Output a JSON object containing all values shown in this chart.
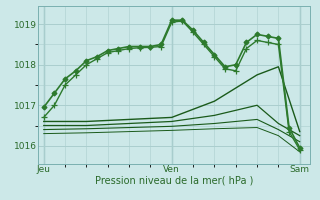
{
  "background_color": "#cce8e8",
  "grid_color": "#aacece",
  "xlabel": "Pression niveau de la mer( hPa )",
  "yticks": [
    1016,
    1017,
    1018,
    1019
  ],
  "xtick_labels": [
    "Jeu",
    "Ven",
    "Sam"
  ],
  "xtick_positions": [
    0,
    12,
    24
  ],
  "xlim": [
    -0.5,
    25
  ],
  "ylim": [
    1015.55,
    1019.45
  ],
  "series": [
    {
      "x": [
        0,
        1,
        2,
        3,
        4,
        5,
        6,
        7,
        8,
        9,
        10,
        11,
        12,
        13,
        14,
        15,
        16,
        17,
        18,
        19,
        20,
        21,
        22,
        23,
        24
      ],
      "y": [
        1016.95,
        1017.3,
        1017.65,
        1017.85,
        1018.1,
        1018.2,
        1018.35,
        1018.4,
        1018.45,
        1018.45,
        1018.45,
        1018.5,
        1019.1,
        1019.1,
        1018.85,
        1018.55,
        1018.25,
        1017.95,
        1018.0,
        1018.55,
        1018.75,
        1018.7,
        1018.65,
        1016.45,
        1015.95
      ],
      "marker": "D",
      "color": "#2d7a2d",
      "lw": 1.2,
      "ms": 2.5
    },
    {
      "x": [
        0,
        1,
        2,
        3,
        4,
        5,
        6,
        7,
        8,
        9,
        10,
        11,
        12,
        13,
        14,
        15,
        16,
        17,
        18,
        19,
        20,
        21,
        22,
        23,
        24
      ],
      "y": [
        1016.7,
        1017.0,
        1017.5,
        1017.75,
        1018.0,
        1018.15,
        1018.3,
        1018.35,
        1018.4,
        1018.42,
        1018.43,
        1018.45,
        1019.05,
        1019.08,
        1018.8,
        1018.5,
        1018.2,
        1017.9,
        1017.85,
        1018.4,
        1018.6,
        1018.55,
        1018.5,
        1016.35,
        1015.9
      ],
      "marker": "+",
      "color": "#2d7a2d",
      "lw": 1.0,
      "ms": 4.0
    },
    {
      "x": [
        0,
        4,
        8,
        12,
        16,
        20,
        22,
        24
      ],
      "y": [
        1016.6,
        1016.6,
        1016.65,
        1016.7,
        1017.1,
        1017.75,
        1017.95,
        1016.35
      ],
      "marker": null,
      "color": "#1a5a1a",
      "lw": 1.0
    },
    {
      "x": [
        0,
        4,
        8,
        12,
        16,
        20,
        22,
        24
      ],
      "y": [
        1016.5,
        1016.5,
        1016.55,
        1016.6,
        1016.75,
        1017.0,
        1016.55,
        1016.25
      ],
      "marker": null,
      "color": "#1a5a1a",
      "lw": 0.9
    },
    {
      "x": [
        0,
        4,
        8,
        12,
        16,
        20,
        22,
        24
      ],
      "y": [
        1016.4,
        1016.42,
        1016.45,
        1016.48,
        1016.55,
        1016.65,
        1016.4,
        1016.1
      ],
      "marker": null,
      "color": "#1a5a1a",
      "lw": 0.8
    },
    {
      "x": [
        0,
        4,
        8,
        12,
        16,
        20,
        22,
        24
      ],
      "y": [
        1016.3,
        1016.32,
        1016.35,
        1016.38,
        1016.42,
        1016.45,
        1016.25,
        1015.85
      ],
      "marker": null,
      "color": "#1a5a1a",
      "lw": 0.7
    }
  ]
}
